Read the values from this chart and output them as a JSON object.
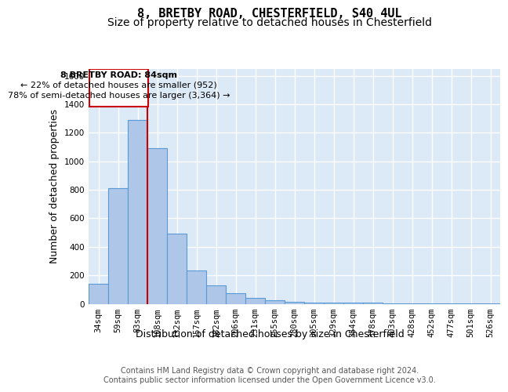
{
  "title1": "8, BRETBY ROAD, CHESTERFIELD, S40 4UL",
  "title2": "Size of property relative to detached houses in Chesterfield",
  "xlabel": "Distribution of detached houses by size in Chesterfield",
  "ylabel": "Number of detached properties",
  "bar_values": [
    140,
    810,
    1290,
    1090,
    490,
    235,
    130,
    75,
    40,
    25,
    15,
    10,
    8,
    7,
    6,
    5,
    4,
    3,
    2,
    2,
    1
  ],
  "bin_labels": [
    "34sqm",
    "59sqm",
    "83sqm",
    "108sqm",
    "132sqm",
    "157sqm",
    "182sqm",
    "206sqm",
    "231sqm",
    "255sqm",
    "280sqm",
    "305sqm",
    "329sqm",
    "354sqm",
    "378sqm",
    "403sqm",
    "428sqm",
    "452sqm",
    "477sqm",
    "501sqm",
    "526sqm"
  ],
  "bar_color": "#aec6e8",
  "bar_edge_color": "#5b9bd5",
  "highlight_line_color": "#cc0000",
  "highlight_bar_index": 2,
  "annotation_line1": "8 BRETBY ROAD: 84sqm",
  "annotation_line2": "← 22% of detached houses are smaller (952)",
  "annotation_line3": "78% of semi-detached houses are larger (3,364) →",
  "annotation_box_color": "#cc0000",
  "ylim": [
    0,
    1650
  ],
  "yticks": [
    0,
    200,
    400,
    600,
    800,
    1000,
    1200,
    1400,
    1600
  ],
  "footer_text": "Contains HM Land Registry data © Crown copyright and database right 2024.\nContains public sector information licensed under the Open Government Licence v3.0.",
  "bg_color": "#dce9f7",
  "grid_color": "#ffffff",
  "title1_fontsize": 11,
  "title2_fontsize": 10,
  "xlabel_fontsize": 9,
  "ylabel_fontsize": 9,
  "tick_fontsize": 7.5,
  "annotation_fontsize": 8,
  "footer_fontsize": 7
}
